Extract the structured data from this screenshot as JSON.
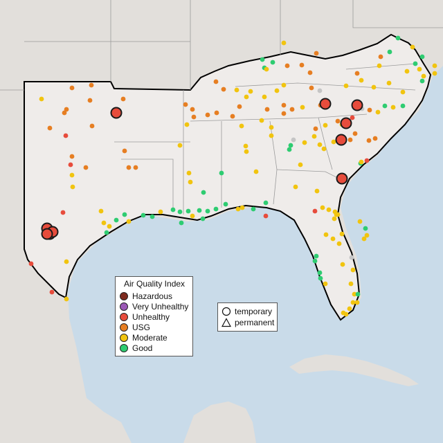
{
  "colors": {
    "water": "#c9dbe9",
    "land_outside": "#e2dfdb",
    "land_focus": "#efecea",
    "state_lines": "#9a9a9a",
    "region_outline": "#000000",
    "hazardous": "#7e2a1e",
    "very_unhealthy": "#9b59b6",
    "unhealthy": "#e74c3c",
    "usg": "#e67e22",
    "moderate": "#f1c40f",
    "good": "#2ecc71",
    "marker_outline": "#1a1a1a"
  },
  "legend": {
    "title": "Air Quality Index",
    "items": [
      {
        "label": "Hazardous",
        "color": "#7e2a1e"
      },
      {
        "label": "Very Unhealthy",
        "color": "#9b59b6"
      },
      {
        "label": "Unhealthy",
        "color": "#e74c3c"
      },
      {
        "label": "USG",
        "color": "#e67e22"
      },
      {
        "label": "Moderate",
        "color": "#f1c40f"
      },
      {
        "label": "Good",
        "color": "#2ecc71"
      }
    ]
  },
  "type_legend": {
    "temporary": "temporary",
    "permanent": "permanent"
  }
}
